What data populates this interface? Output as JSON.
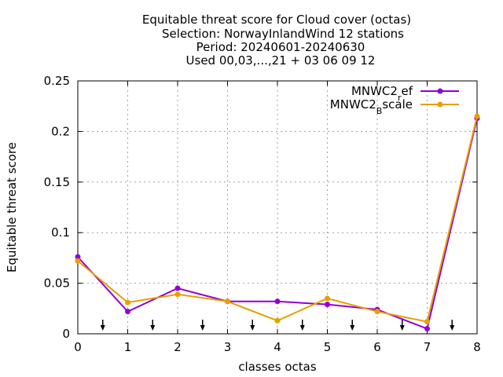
{
  "chart_data": {
    "type": "line",
    "title_lines": [
      "Equitable threat score  for Cloud cover (octas)",
      "Selection: NorwayInlandWind     12 stations",
      "Period: 20240601-20240630",
      "Used 00,03,...,21 + 03 06 09 12"
    ],
    "xlabel": "classes octas",
    "ylabel": "Equitable threat score",
    "xlim": [
      0,
      8
    ],
    "ylim": [
      0,
      0.25
    ],
    "x_ticks": [
      0,
      1,
      2,
      3,
      4,
      5,
      6,
      7,
      8
    ],
    "x_tick_labels": [
      "0",
      "1",
      "2",
      "3",
      "4",
      "5",
      "6",
      "7",
      "8"
    ],
    "y_ticks": [
      0,
      0.05,
      0.1,
      0.15,
      0.2,
      0.25
    ],
    "y_tick_labels": [
      "0",
      "0.05",
      "0.1",
      "0.15",
      "0.2",
      "0.25"
    ],
    "grid": true,
    "legend_position": "top-right",
    "x": [
      0,
      1,
      2,
      3,
      4,
      5,
      6,
      7,
      8
    ],
    "series": [
      {
        "name_base": "MNWC2",
        "name_sub": "r",
        "name_tail": "ef",
        "color": "#9400d3",
        "values": [
          0.076,
          0.022,
          0.045,
          0.032,
          0.032,
          0.029,
          0.024,
          0.005,
          0.213
        ]
      },
      {
        "name_base": "MNWC2",
        "name_sub": "B",
        "name_tail": "scale",
        "color": "#e69f00",
        "values": [
          0.072,
          0.031,
          0.039,
          0.032,
          0.013,
          0.035,
          0.022,
          0.012,
          0.215
        ]
      }
    ],
    "arrow_markers_x": [
      0.5,
      1.5,
      2.5,
      3.5,
      4.5,
      5.5,
      6.5,
      7.5
    ]
  }
}
